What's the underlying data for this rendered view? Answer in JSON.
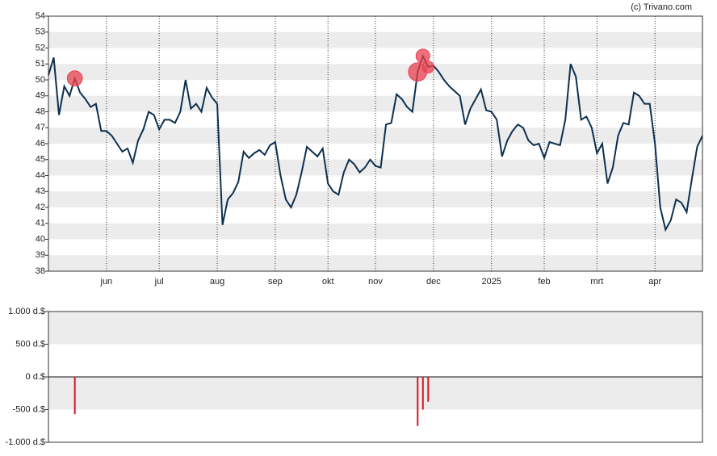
{
  "watermark": "(c) Trivano.com",
  "chart_data": [
    {
      "type": "line",
      "categories": [
        null,
        null,
        null,
        null,
        null,
        null,
        null,
        null,
        null,
        null,
        null,
        "jun",
        null,
        null,
        null,
        null,
        null,
        null,
        null,
        null,
        null,
        "jul",
        null,
        null,
        null,
        null,
        null,
        null,
        null,
        null,
        null,
        null,
        "aug",
        null,
        null,
        null,
        null,
        null,
        null,
        null,
        null,
        null,
        null,
        "sep",
        null,
        null,
        null,
        null,
        null,
        null,
        null,
        null,
        null,
        "okt",
        null,
        null,
        null,
        null,
        null,
        null,
        null,
        null,
        "nov",
        null,
        null,
        null,
        null,
        null,
        null,
        null,
        null,
        null,
        null,
        "dec",
        null,
        null,
        null,
        null,
        null,
        null,
        null,
        null,
        null,
        null,
        "2025",
        null,
        null,
        null,
        null,
        null,
        null,
        null,
        null,
        null,
        "feb",
        null,
        null,
        null,
        null,
        null,
        null,
        null,
        null,
        null,
        "mrt",
        null,
        null,
        null,
        null,
        null,
        null,
        null,
        null,
        null,
        null,
        "apr",
        null,
        null,
        null,
        null,
        null,
        null,
        null,
        null,
        null
      ],
      "series": [
        {
          "color": "#0d3050",
          "values": [
            50.3,
            51.4,
            47.8,
            49.6,
            49.0,
            50.1,
            49.2,
            48.8,
            48.3,
            48.5,
            46.8,
            46.8,
            46.5,
            46.0,
            45.5,
            45.7,
            44.8,
            46.2,
            46.9,
            48.0,
            47.8,
            46.9,
            47.5,
            47.5,
            47.3,
            48.0,
            50.0,
            48.2,
            48.5,
            48.0,
            49.5,
            48.9,
            48.5,
            40.9,
            42.5,
            42.9,
            43.6,
            45.5,
            45.1,
            45.4,
            45.6,
            45.3,
            45.9,
            46.1,
            44.0,
            42.5,
            42.0,
            42.8,
            44.2,
            45.8,
            45.5,
            45.2,
            45.7,
            43.5,
            43.0,
            42.8,
            44.2,
            45.0,
            44.7,
            44.2,
            44.5,
            45.0,
            44.6,
            44.5,
            47.2,
            47.3,
            49.1,
            48.8,
            48.3,
            48.0,
            50.5,
            51.5,
            50.8,
            50.9,
            50.5,
            50.0,
            49.6,
            49.3,
            49.0,
            47.2,
            48.2,
            48.8,
            49.4,
            48.1,
            48.0,
            47.5,
            45.2,
            46.2,
            46.8,
            47.2,
            47.0,
            46.2,
            45.9,
            46.0,
            45.1,
            46.1,
            46.0,
            45.9,
            47.5,
            51.0,
            50.2,
            47.5,
            47.7,
            47.0,
            45.4,
            46.0,
            43.5,
            44.5,
            46.5,
            47.3,
            47.2,
            49.2,
            49.0,
            48.5,
            48.5,
            46.0,
            42.0,
            40.6,
            41.2,
            42.5,
            42.3,
            41.7,
            43.8,
            45.8,
            46.5
          ]
        }
      ],
      "marker_color": "#e8404f",
      "ylim": [
        38,
        54
      ],
      "yticks": [
        38,
        39,
        40,
        41,
        42,
        43,
        44,
        45,
        46,
        47,
        48,
        49,
        50,
        51,
        52,
        53,
        54
      ]
    },
    {
      "type": "bar",
      "color": "#d9162a",
      "values": [
        null,
        null,
        null,
        null,
        null,
        -570,
        null,
        null,
        null,
        null,
        null,
        null,
        null,
        null,
        null,
        null,
        null,
        null,
        null,
        null,
        null,
        null,
        null,
        null,
        null,
        null,
        null,
        null,
        null,
        null,
        null,
        null,
        null,
        null,
        null,
        null,
        null,
        null,
        null,
        null,
        null,
        null,
        null,
        null,
        null,
        null,
        null,
        null,
        null,
        null,
        null,
        null,
        null,
        null,
        null,
        null,
        null,
        null,
        null,
        null,
        null,
        null,
        null,
        null,
        null,
        null,
        null,
        null,
        null,
        null,
        -750,
        -500,
        -380,
        null,
        null,
        null,
        null,
        null,
        null,
        null,
        null,
        null,
        null,
        null,
        null,
        null,
        null,
        null,
        null,
        null,
        null,
        null,
        null,
        null,
        null,
        null,
        null,
        null,
        null,
        null,
        null,
        null,
        null,
        null,
        null,
        null,
        null,
        null,
        null,
        null,
        null,
        null,
        null,
        null,
        null,
        null,
        null,
        null,
        null,
        null,
        null,
        null,
        null,
        null,
        null
      ],
      "ylim": [
        -1000,
        1000
      ],
      "yticks": [
        {
          "value": -1000,
          "label": "-1.000 d.$"
        },
        {
          "value": -500,
          "label": "-500 d.$"
        },
        {
          "value": 0,
          "label": "0 d.$"
        },
        {
          "value": 500,
          "label": "500 d.$"
        },
        {
          "value": 1000,
          "label": "1.000 d.$"
        }
      ]
    }
  ]
}
